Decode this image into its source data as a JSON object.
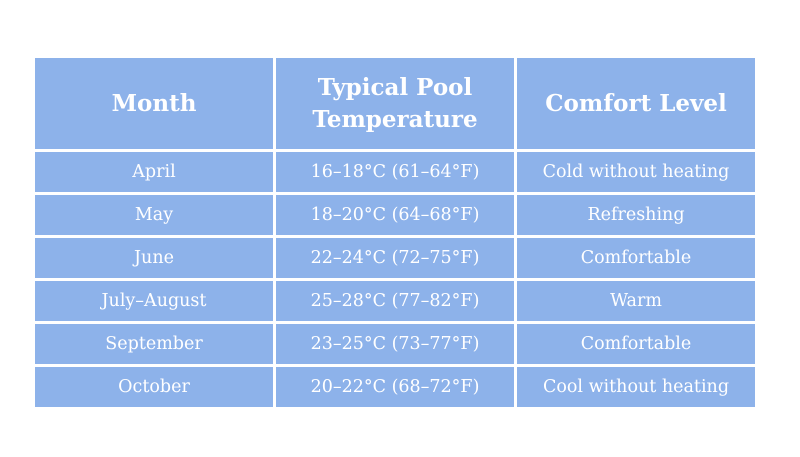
{
  "table": {
    "headers": [
      "Month",
      "Typical Pool Temperature",
      "Comfort Level"
    ],
    "rows": [
      [
        "April",
        "16–18°C (61–64°F)",
        "Cold without heating"
      ],
      [
        "May",
        "18–20°C (64–68°F)",
        "Refreshing"
      ],
      [
        "June",
        "22–24°C (72–75°F)",
        "Comfortable"
      ],
      [
        "July–August",
        "25–28°C (77–82°F)",
        "Warm"
      ],
      [
        "September",
        "23–25°C (73–77°F)",
        "Comfortable"
      ],
      [
        "October",
        "20–22°C (68–72°F)",
        "Cool without heating"
      ]
    ],
    "colors": {
      "cell_background": "#8db2ea",
      "text": "#ffffff",
      "border": "#ffffff"
    }
  }
}
